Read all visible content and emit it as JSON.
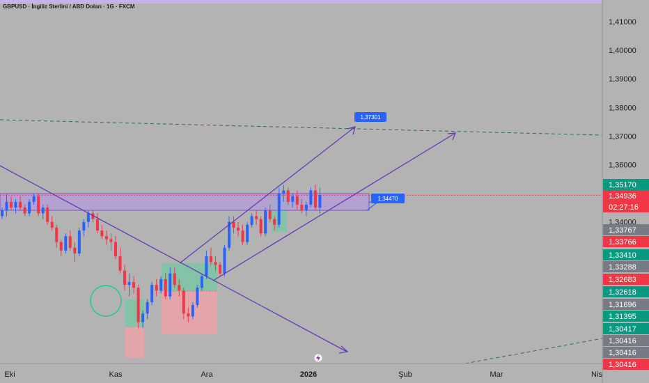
{
  "header": {
    "title": "GBPUSD · İngiliz Sterlini / ABD Doları · 1G · FXCM"
  },
  "colors": {
    "background": "#b3b3b3",
    "bull": "#2962ff",
    "bear": "#f23645",
    "channel": "#673ab7",
    "zone_fill": "#b39ddb",
    "label_blue": "#2962ff",
    "long_profit": "#7fc4a6",
    "long_risk": "#e8a2a8",
    "axis_green": "#089981",
    "axis_red": "#f23645",
    "axis_gray": "#787b86"
  },
  "chart_data": {
    "type": "candlestick",
    "ylim": [
      1.298,
      1.416
    ],
    "y_ticks": [
      "1,41000",
      "1,40000",
      "1,39000",
      "1,38000",
      "1,37000",
      "1,36000",
      "1,35000",
      "1,34000"
    ],
    "x_ticks": [
      "Eki",
      "Kas",
      "Ara",
      "2026",
      "Şub",
      "Mar",
      "Nis"
    ],
    "candles": [
      [
        1.342,
        1.345,
        1.341,
        1.344
      ],
      [
        1.344,
        1.35,
        1.342,
        1.347
      ],
      [
        1.347,
        1.349,
        1.344,
        1.345
      ],
      [
        1.345,
        1.348,
        1.343,
        1.347
      ],
      [
        1.347,
        1.349,
        1.344,
        1.345
      ],
      [
        1.345,
        1.346,
        1.342,
        1.343
      ],
      [
        1.343,
        1.348,
        1.342,
        1.347
      ],
      [
        1.347,
        1.35,
        1.346,
        1.349
      ],
      [
        1.349,
        1.35,
        1.342,
        1.343
      ],
      [
        1.343,
        1.346,
        1.341,
        1.345
      ],
      [
        1.345,
        1.346,
        1.339,
        1.34
      ],
      [
        1.34,
        1.342,
        1.337,
        1.338
      ],
      [
        1.338,
        1.339,
        1.331,
        1.333
      ],
      [
        1.333,
        1.334,
        1.328,
        1.33
      ],
      [
        1.33,
        1.336,
        1.329,
        1.335
      ],
      [
        1.335,
        1.337,
        1.33,
        1.331
      ],
      [
        1.331,
        1.333,
        1.326,
        1.329
      ],
      [
        1.329,
        1.338,
        1.328,
        1.337
      ],
      [
        1.337,
        1.341,
        1.335,
        1.34
      ],
      [
        1.34,
        1.344,
        1.338,
        1.343
      ],
      [
        1.343,
        1.344,
        1.34,
        1.341
      ],
      [
        1.341,
        1.343,
        1.336,
        1.337
      ],
      [
        1.337,
        1.339,
        1.334,
        1.335
      ],
      [
        1.335,
        1.337,
        1.332,
        1.334
      ],
      [
        1.334,
        1.336,
        1.33,
        1.333
      ],
      [
        1.333,
        1.335,
        1.327,
        1.328
      ],
      [
        1.328,
        1.331,
        1.322,
        1.323
      ],
      [
        1.323,
        1.325,
        1.316,
        1.318
      ],
      [
        1.318,
        1.322,
        1.314,
        1.319
      ],
      [
        1.319,
        1.321,
        1.315,
        1.317
      ],
      [
        1.317,
        1.318,
        1.303,
        1.305
      ],
      [
        1.305,
        1.309,
        1.303,
        1.308
      ],
      [
        1.308,
        1.313,
        1.306,
        1.312
      ],
      [
        1.312,
        1.319,
        1.311,
        1.318
      ],
      [
        1.318,
        1.32,
        1.314,
        1.316
      ],
      [
        1.316,
        1.321,
        1.315,
        1.32
      ],
      [
        1.32,
        1.322,
        1.313,
        1.314
      ],
      [
        1.314,
        1.324,
        1.313,
        1.322
      ],
      [
        1.322,
        1.324,
        1.317,
        1.318
      ],
      [
        1.318,
        1.32,
        1.314,
        1.316
      ],
      [
        1.316,
        1.317,
        1.306,
        1.308
      ],
      [
        1.308,
        1.31,
        1.305,
        1.307
      ],
      [
        1.307,
        1.312,
        1.306,
        1.311
      ],
      [
        1.311,
        1.318,
        1.31,
        1.317
      ],
      [
        1.317,
        1.322,
        1.316,
        1.321
      ],
      [
        1.321,
        1.33,
        1.32,
        1.328
      ],
      [
        1.328,
        1.331,
        1.325,
        1.326
      ],
      [
        1.326,
        1.328,
        1.323,
        1.325
      ],
      [
        1.325,
        1.326,
        1.321,
        1.322
      ],
      [
        1.322,
        1.332,
        1.321,
        1.331
      ],
      [
        1.331,
        1.342,
        1.33,
        1.34
      ],
      [
        1.34,
        1.342,
        1.336,
        1.338
      ],
      [
        1.338,
        1.34,
        1.335,
        1.337
      ],
      [
        1.337,
        1.339,
        1.332,
        1.333
      ],
      [
        1.333,
        1.34,
        1.332,
        1.339
      ],
      [
        1.339,
        1.343,
        1.338,
        1.342
      ],
      [
        1.342,
        1.344,
        1.339,
        1.341
      ],
      [
        1.341,
        1.342,
        1.335,
        1.336
      ],
      [
        1.336,
        1.345,
        1.335,
        1.344
      ],
      [
        1.344,
        1.346,
        1.34,
        1.341
      ],
      [
        1.341,
        1.342,
        1.337,
        1.339
      ],
      [
        1.339,
        1.352,
        1.338,
        1.35
      ],
      [
        1.35,
        1.353,
        1.347,
        1.351
      ],
      [
        1.351,
        1.352,
        1.346,
        1.347
      ],
      [
        1.347,
        1.35,
        1.345,
        1.349
      ],
      [
        1.349,
        1.351,
        1.344,
        1.346
      ],
      [
        1.346,
        1.348,
        1.343,
        1.344
      ],
      [
        1.344,
        1.347,
        1.342,
        1.346
      ],
      [
        1.346,
        1.352,
        1.345,
        1.351
      ],
      [
        1.351,
        1.353,
        1.344,
        1.345
      ],
      [
        1.345,
        1.352,
        1.343,
        1.3494
      ]
    ]
  },
  "drawings": {
    "zone_label": "1,34470",
    "target_label": "1,37301"
  },
  "price_axis": {
    "labels": [
      {
        "text": "1,35170",
        "style": "green",
        "value": 1.3517
      },
      {
        "text": "1,34936",
        "style": "red",
        "value": 1.34936
      },
      {
        "text": "02:27:16",
        "style": "red"
      },
      {
        "text": "1,33767",
        "style": "gray"
      },
      {
        "text": "1,33766",
        "style": "red"
      },
      {
        "text": "1,33410",
        "style": "green"
      },
      {
        "text": "1,33288",
        "style": "gray"
      },
      {
        "text": "1,32683",
        "style": "red"
      },
      {
        "text": "1,32618",
        "style": "green"
      },
      {
        "text": "1,31696",
        "style": "gray"
      },
      {
        "text": "1,31395",
        "style": "green"
      },
      {
        "text": "1,30417",
        "style": "green"
      },
      {
        "text": "1,30416",
        "style": "gray"
      },
      {
        "text": "1,30416",
        "style": "gray"
      },
      {
        "text": "1,30416",
        "style": "red"
      }
    ]
  }
}
